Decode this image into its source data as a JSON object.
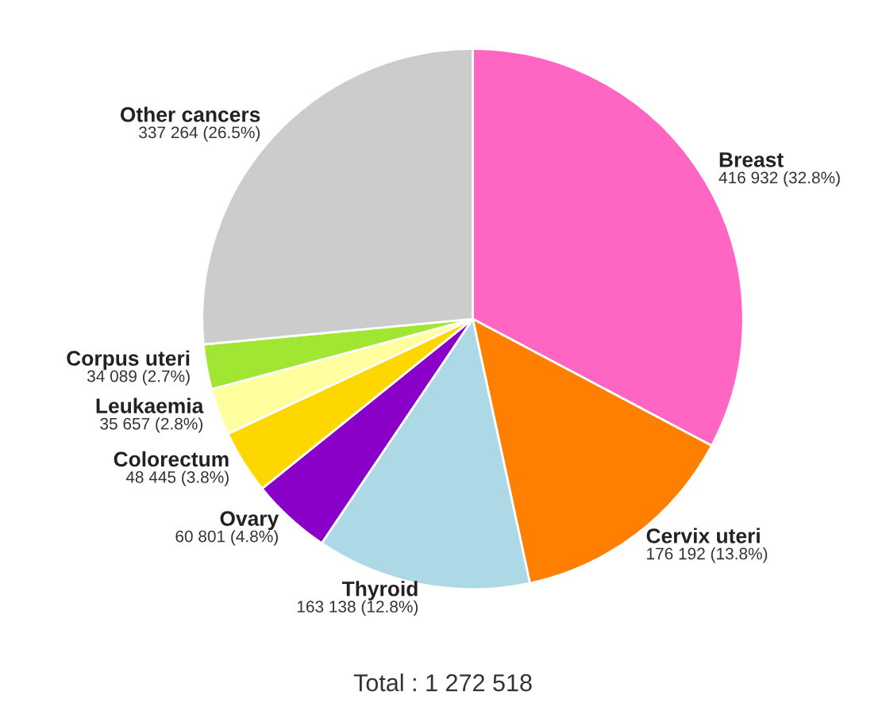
{
  "chart_data": {
    "type": "pie",
    "categories": [
      "Breast",
      "Cervix uteri",
      "Thyroid",
      "Ovary",
      "Colorectum",
      "Leukaemia",
      "Corpus uteri",
      "Other cancers"
    ],
    "values": [
      416932,
      176192,
      163138,
      60801,
      48445,
      35657,
      34089,
      337264
    ],
    "value_labels": [
      "416 932 (32.8%)",
      "176 192 (13.8%)",
      "163 138 (12.8%)",
      "60 801 (4.8%)",
      "48 445 (3.8%)",
      "35 657 (2.8%)",
      "34 089 (2.7%)",
      "337 264 (26.5%)"
    ],
    "colors": [
      "#ff66c4",
      "#ff7f00",
      "#add8e6",
      "#8b00c8",
      "#ffd700",
      "#ffffa0",
      "#a0e632",
      "#cccccc"
    ],
    "annotations": [
      "Total : 1 272 518"
    ]
  }
}
